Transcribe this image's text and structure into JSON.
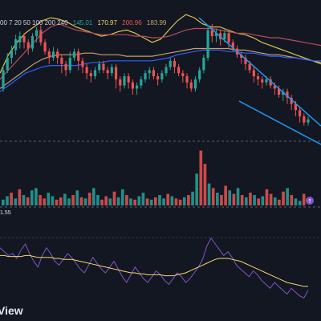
{
  "chart_data": {
    "type": "line",
    "ma_legend": {
      "periods_text": "00 7 20 50 100 200 240",
      "values": [
        {
          "text": "145.01",
          "color": "#26a69a"
        },
        {
          "text": "170.97",
          "color": "#f5d76e"
        },
        {
          "text": "200.96",
          "color": "#ef5350"
        },
        {
          "text": "183.99",
          "color": "#c9a26b"
        }
      ],
      "truncated_value": "183.99",
      "truncated_color": "#2962ff"
    },
    "price_series": [
      {
        "color": "#d9c34a",
        "values": [
          50,
          62,
          70,
          76,
          80,
          84,
          86,
          85,
          83,
          80,
          78,
          76,
          74,
          75,
          77,
          78,
          76,
          73,
          70,
          72,
          78,
          84,
          88,
          86,
          82,
          80,
          80,
          78,
          76,
          75,
          73,
          70,
          68,
          66,
          64,
          62,
          60,
          58,
          56
        ]
      },
      {
        "color": "#c9a26b",
        "values": [
          40,
          44,
          48,
          52,
          56,
          59,
          61,
          62,
          62,
          62,
          63,
          63,
          62,
          62,
          62,
          61,
          61,
          61,
          61,
          62,
          63,
          64,
          65,
          66,
          66,
          66,
          66,
          66,
          65,
          65,
          64,
          63,
          62,
          62,
          61,
          60,
          59,
          58,
          57
        ]
      },
      {
        "color": "#b84c57",
        "values": [
          46,
          52,
          58,
          64,
          70,
          76,
          80,
          82,
          80,
          78,
          77,
          76,
          75,
          75,
          75,
          75,
          74,
          74,
          73,
          73,
          74,
          76,
          78,
          79,
          79,
          79,
          78,
          77,
          76,
          76,
          75,
          74,
          73,
          73,
          72,
          71,
          70,
          69,
          68
        ]
      },
      {
        "color": "#2962ff",
        "values": [
          38,
          42,
          46,
          50,
          52,
          54,
          55,
          55,
          55,
          55,
          56,
          57,
          57,
          58,
          58,
          58,
          58,
          58,
          58,
          59,
          60,
          62,
          63,
          64,
          65,
          65,
          65,
          64,
          64,
          63,
          63,
          62,
          61,
          61,
          60,
          60,
          59,
          58,
          58
        ]
      }
    ],
    "candles": [
      [
        60,
        72,
        58,
        75
      ],
      [
        72,
        80,
        70,
        83
      ],
      [
        80,
        85,
        76,
        88
      ],
      [
        85,
        92,
        82,
        95
      ],
      [
        90,
        94,
        86,
        97
      ],
      [
        94,
        90,
        86,
        96
      ],
      [
        90,
        86,
        82,
        92
      ],
      [
        86,
        94,
        84,
        96
      ],
      [
        94,
        98,
        90,
        100
      ],
      [
        98,
        90,
        88,
        101
      ],
      [
        90,
        84,
        82,
        92
      ],
      [
        84,
        80,
        76,
        86
      ],
      [
        80,
        84,
        78,
        87
      ],
      [
        84,
        80,
        76,
        86
      ],
      [
        80,
        76,
        70,
        82
      ],
      [
        76,
        72,
        68,
        78
      ],
      [
        72,
        80,
        70,
        84
      ],
      [
        80,
        84,
        78,
        86
      ],
      [
        84,
        78,
        72,
        86
      ],
      [
        78,
        74,
        70,
        80
      ],
      [
        74,
        70,
        66,
        76
      ],
      [
        70,
        68,
        64,
        72
      ],
      [
        68,
        72,
        66,
        74
      ],
      [
        72,
        76,
        70,
        78
      ],
      [
        76,
        72,
        70,
        78
      ],
      [
        72,
        70,
        66,
        74
      ],
      [
        70,
        74,
        68,
        76
      ],
      [
        74,
        66,
        60,
        76
      ],
      [
        66,
        62,
        58,
        68
      ],
      [
        62,
        68,
        60,
        70
      ],
      [
        68,
        64,
        60,
        70
      ],
      [
        64,
        60,
        56,
        66
      ],
      [
        60,
        62,
        56,
        64
      ],
      [
        62,
        66,
        60,
        68
      ],
      [
        66,
        70,
        64,
        72
      ],
      [
        70,
        72,
        66,
        74
      ],
      [
        72,
        68,
        66,
        74
      ],
      [
        68,
        66,
        62,
        70
      ],
      [
        66,
        70,
        64,
        72
      ],
      [
        70,
        74,
        68,
        76
      ],
      [
        74,
        78,
        72,
        80
      ],
      [
        78,
        74,
        70,
        80
      ],
      [
        74,
        70,
        68,
        76
      ],
      [
        70,
        68,
        64,
        72
      ],
      [
        68,
        64,
        60,
        70
      ],
      [
        64,
        60,
        58,
        66
      ],
      [
        60,
        66,
        58,
        68
      ],
      [
        66,
        72,
        64,
        74
      ],
      [
        72,
        80,
        70,
        82
      ],
      [
        80,
        98,
        78,
        100
      ],
      [
        98,
        94,
        90,
        102
      ],
      [
        94,
        96,
        90,
        99
      ],
      [
        96,
        92,
        88,
        98
      ],
      [
        92,
        96,
        90,
        98
      ],
      [
        96,
        90,
        86,
        98
      ],
      [
        90,
        86,
        84,
        92
      ],
      [
        86,
        82,
        80,
        88
      ],
      [
        82,
        80,
        76,
        84
      ],
      [
        80,
        76,
        72,
        82
      ],
      [
        76,
        72,
        70,
        78
      ],
      [
        72,
        68,
        64,
        74
      ],
      [
        68,
        66,
        62,
        70
      ],
      [
        66,
        64,
        60,
        68
      ],
      [
        64,
        66,
        62,
        68
      ],
      [
        66,
        62,
        60,
        68
      ],
      [
        62,
        60,
        56,
        64
      ],
      [
        60,
        56,
        54,
        62
      ],
      [
        56,
        58,
        52,
        60
      ],
      [
        58,
        54,
        50,
        60
      ],
      [
        54,
        50,
        46,
        56
      ],
      [
        50,
        46,
        42,
        52
      ],
      [
        46,
        42,
        38,
        48
      ],
      [
        42,
        38,
        36,
        44
      ],
      [
        38,
        40,
        36,
        42
      ]
    ],
    "volume": [
      {
        "v": 0.1,
        "up": true
      },
      {
        "v": 0.16,
        "up": true
      },
      {
        "v": 0.22,
        "up": false
      },
      {
        "v": 0.12,
        "up": true
      },
      {
        "v": 0.28,
        "up": false
      },
      {
        "v": 0.18,
        "up": true
      },
      {
        "v": 0.14,
        "up": false
      },
      {
        "v": 0.26,
        "up": true
      },
      {
        "v": 0.3,
        "up": true
      },
      {
        "v": 0.18,
        "up": false
      },
      {
        "v": 0.12,
        "up": false
      },
      {
        "v": 0.22,
        "up": true
      },
      {
        "v": 0.16,
        "up": true
      },
      {
        "v": 0.1,
        "up": false
      },
      {
        "v": 0.14,
        "up": false
      },
      {
        "v": 0.2,
        "up": true
      },
      {
        "v": 0.12,
        "up": true
      },
      {
        "v": 0.18,
        "up": false
      },
      {
        "v": 0.26,
        "up": true
      },
      {
        "v": 0.14,
        "up": false
      },
      {
        "v": 0.12,
        "up": true
      },
      {
        "v": 0.22,
        "up": false
      },
      {
        "v": 0.3,
        "up": true
      },
      {
        "v": 0.18,
        "up": true
      },
      {
        "v": 0.1,
        "up": false
      },
      {
        "v": 0.16,
        "up": false
      },
      {
        "v": 0.12,
        "up": true
      },
      {
        "v": 0.24,
        "up": false
      },
      {
        "v": 0.14,
        "up": true
      },
      {
        "v": 0.28,
        "up": true
      },
      {
        "v": 0.18,
        "up": false
      },
      {
        "v": 0.12,
        "up": true
      },
      {
        "v": 0.1,
        "up": false
      },
      {
        "v": 0.16,
        "up": true
      },
      {
        "v": 0.22,
        "up": true
      },
      {
        "v": 0.12,
        "up": false
      },
      {
        "v": 0.1,
        "up": true
      },
      {
        "v": 0.14,
        "up": false
      },
      {
        "v": 0.18,
        "up": true
      },
      {
        "v": 0.12,
        "up": true
      },
      {
        "v": 0.2,
        "up": false
      },
      {
        "v": 0.16,
        "up": true
      },
      {
        "v": 0.12,
        "up": false
      },
      {
        "v": 0.1,
        "up": false
      },
      {
        "v": 0.14,
        "up": true
      },
      {
        "v": 0.18,
        "up": false
      },
      {
        "v": 0.24,
        "up": true
      },
      {
        "v": 0.55,
        "up": true
      },
      {
        "v": 0.95,
        "up": false
      },
      {
        "v": 0.72,
        "up": false
      },
      {
        "v": 0.38,
        "up": true
      },
      {
        "v": 0.3,
        "up": false
      },
      {
        "v": 0.22,
        "up": true
      },
      {
        "v": 0.18,
        "up": false
      },
      {
        "v": 0.34,
        "up": false
      },
      {
        "v": 0.26,
        "up": true
      },
      {
        "v": 0.2,
        "up": false
      },
      {
        "v": 0.3,
        "up": true
      },
      {
        "v": 0.18,
        "up": false
      },
      {
        "v": 0.14,
        "up": true
      },
      {
        "v": 0.22,
        "up": false
      },
      {
        "v": 0.18,
        "up": true
      },
      {
        "v": 0.12,
        "up": false
      },
      {
        "v": 0.16,
        "up": true
      },
      {
        "v": 0.28,
        "up": false
      },
      {
        "v": 0.2,
        "up": false
      },
      {
        "v": 0.14,
        "up": true
      },
      {
        "v": 0.1,
        "up": false
      },
      {
        "v": 0.24,
        "up": false
      },
      {
        "v": 0.3,
        "up": true
      },
      {
        "v": 0.18,
        "up": false
      },
      {
        "v": 0.12,
        "up": true
      },
      {
        "v": 0.08,
        "up": true
      },
      {
        "v": 0.2,
        "up": false
      }
    ],
    "rsi_label": "1.55",
    "rsi": [
      66,
      62,
      58,
      60,
      55,
      64,
      70,
      60,
      52,
      46,
      58,
      66,
      60,
      52,
      48,
      54,
      60,
      56,
      50,
      44,
      40,
      48,
      56,
      50,
      44,
      40,
      46,
      52,
      44,
      36,
      30,
      38,
      46,
      40,
      34,
      30,
      36,
      42,
      38,
      32,
      28,
      34,
      40,
      36,
      30,
      34,
      40,
      46,
      54,
      68,
      76,
      70,
      64,
      58,
      62,
      56,
      48,
      44,
      40,
      36,
      42,
      38,
      32,
      28,
      24,
      30,
      26,
      22,
      18,
      24,
      20,
      16,
      14,
      22
    ],
    "rsi_ma": [
      58,
      58,
      57,
      57,
      57,
      57,
      58,
      58,
      57,
      56,
      56,
      56,
      56,
      55,
      55,
      54,
      54,
      54,
      53,
      52,
      51,
      50,
      49,
      48,
      47,
      46,
      45,
      44,
      43,
      42,
      41,
      40,
      40,
      39,
      39,
      38,
      38,
      38,
      38,
      37,
      37,
      37,
      38,
      39,
      40,
      42,
      44,
      46,
      48,
      50,
      52,
      54,
      55,
      55,
      55,
      54,
      53,
      52,
      50,
      48,
      46,
      44,
      42,
      40,
      38,
      36,
      34,
      32,
      30,
      29,
      28,
      27,
      26,
      26
    ],
    "colors": {
      "up": "#26a69a",
      "down": "#ef5350",
      "rsi": "#7e57c2",
      "rsi_ma": "#f5d76e",
      "wedge": "#2196f3"
    }
  },
  "brand_text": "View"
}
